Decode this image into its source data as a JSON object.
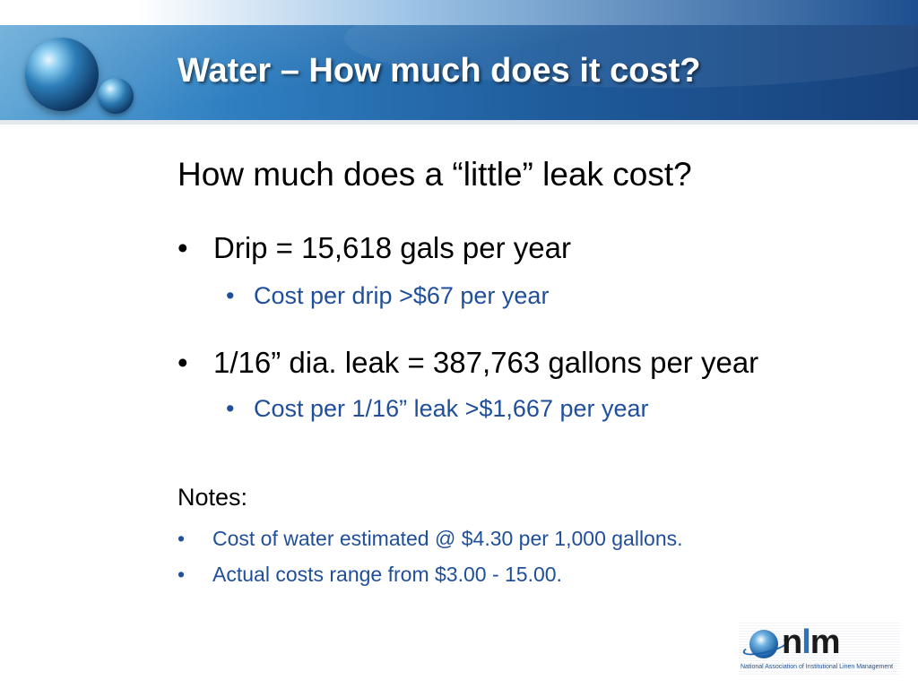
{
  "slide": {
    "title": "Water – How much does it cost?",
    "subtitle": "How much does a “little” leak cost?",
    "bullet_char": "•",
    "bullets": [
      {
        "text": "Drip = 15,618 gals per year",
        "sub": "Cost per drip >$67 per year"
      },
      {
        "text": "1/16” dia. leak = 387,763 gallons per year",
        "sub": "Cost per 1/16” leak >$1,667 per year"
      }
    ],
    "notes": {
      "heading": "Notes:",
      "items": [
        "Cost of water estimated @ $4.30 per 1,000 gallons.",
        "Actual costs range from $3.00 - 15.00."
      ]
    }
  },
  "logo": {
    "letters": [
      "n",
      "l",
      "m"
    ],
    "caption": "National Association of Institutional Linen Management"
  },
  "colors": {
    "header_blue": "#1f5c9c",
    "sub_bullet_blue": "#1f4f9a",
    "title_text": "#ffffff"
  },
  "icons": {
    "header_decoration": "globe-icon",
    "logo_mark": "globe-icon"
  }
}
